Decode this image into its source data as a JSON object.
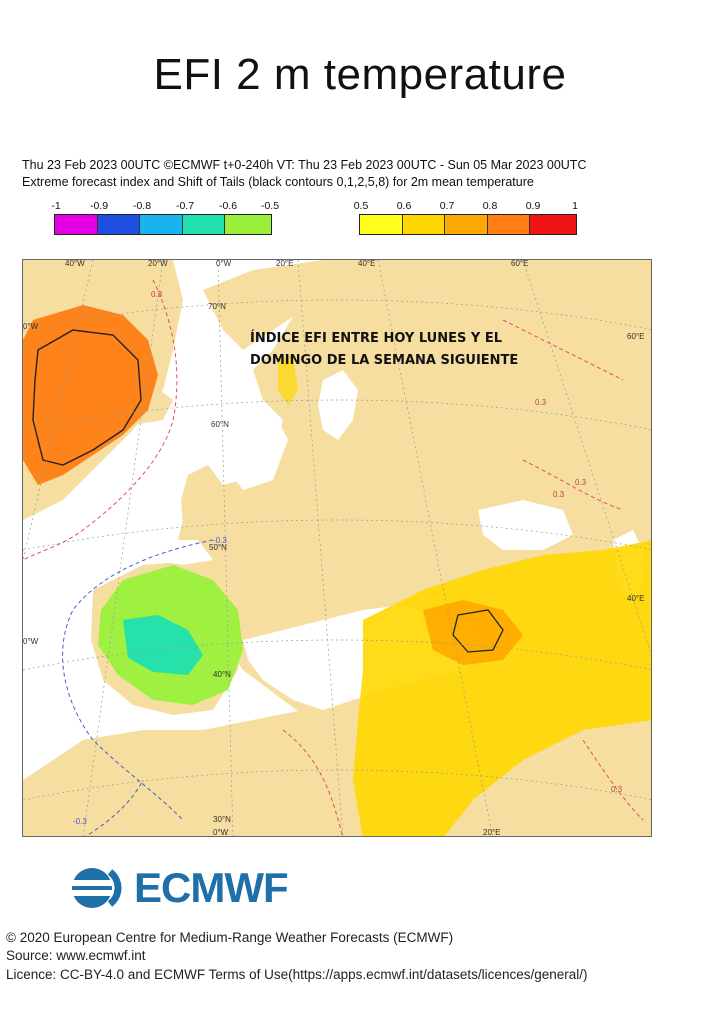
{
  "title": "EFI 2 m temperature",
  "subtitle_line1": "Thu 23 Feb 2023 00UTC ©ECMWF t+0-240h  VT: Thu 23 Feb 2023 00UTC - Sun 05 Mar 2023 00UTC",
  "subtitle_line2": "Extreme forecast index and Shift of Tails (black contours 0,1,2,5,8) for 2m mean temperature",
  "legend_negative": {
    "ticks": [
      "-1",
      "-0.9",
      "-0.8",
      "-0.7",
      "-0.6",
      "-0.5"
    ],
    "colors": [
      "#e600e6",
      "#1f4fe0",
      "#19b4f0",
      "#20e0b0",
      "#9bf03c"
    ]
  },
  "legend_positive": {
    "ticks": [
      "0.5",
      "0.6",
      "0.7",
      "0.8",
      "0.9",
      "1"
    ],
    "colors": [
      "#ffff19",
      "#ffd700",
      "#ffaa00",
      "#ff7d14",
      "#f01414"
    ]
  },
  "map": {
    "top_lon_labels": [
      "40°W",
      "20°W",
      "0°W",
      "20°E",
      "40°E",
      "60°E"
    ],
    "bottom_lon_labels": [
      "0°W",
      "20°E"
    ],
    "lat_labels": [
      "70°N",
      "60°N",
      "50°N",
      "40°N",
      "30°N"
    ],
    "left_edge_labels": [
      "0°W",
      "0°W"
    ],
    "right_edge_labels": [
      "60°E",
      "40°E"
    ],
    "contour_labels": [
      "0.3",
      "-0.3",
      "0.3",
      "0.3",
      "0.3",
      "0.3",
      "-0.3"
    ],
    "annotation_line1": "ÍNDICE EFI ENTRE HOY LUNES Y EL",
    "annotation_line2": "DOMINGO DE LA SEMANA SIGUIENTE",
    "colors": {
      "land": "#f5dea0",
      "sea": "#ffffff",
      "greenland": "#ff7d14",
      "iberia_green": "#9bf03c",
      "iberia_cyan": "#20e0b0",
      "mediterranean_yellow": "#ffd700",
      "aegean_orange": "#ffaa00",
      "contour_red": "#e0505a",
      "contour_blue": "#4a5ad0"
    }
  },
  "logo_text": "ECMWF",
  "copyright": "© 2020 European Centre for Medium-Range Weather Forecasts (ECMWF)",
  "source": "Source: www.ecmwf.int",
  "licence": "Licence: CC-BY-4.0 and ECMWF Terms of Use(https://apps.ecmwf.int/datasets/licences/general/)"
}
